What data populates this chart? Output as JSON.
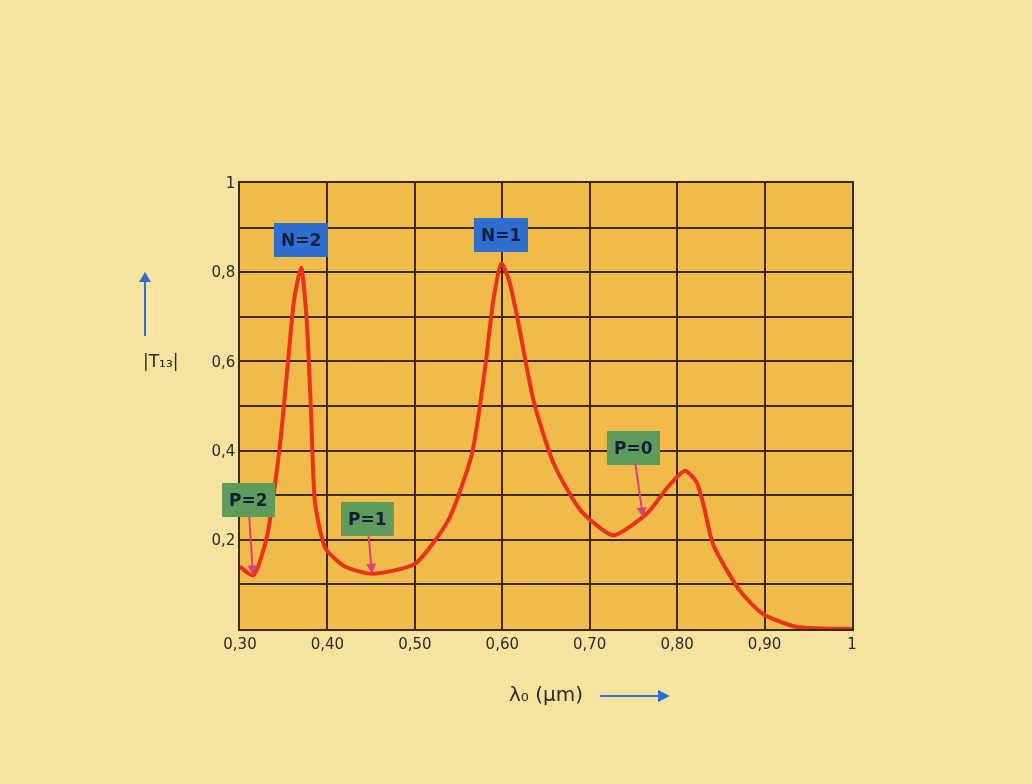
{
  "chart_data": {
    "type": "line",
    "xlabel": "λ₀ (µm)",
    "ylabel": "|T₁₃|",
    "x": [
      0.3,
      0.315,
      0.33,
      0.345,
      0.355,
      0.362,
      0.37,
      0.376,
      0.381,
      0.386,
      0.398,
      0.42,
      0.451,
      0.5,
      0.538,
      0.565,
      0.58,
      0.59,
      0.599,
      0.608,
      0.618,
      0.636,
      0.659,
      0.69,
      0.727,
      0.766,
      0.79,
      0.809,
      0.822,
      0.83,
      0.841,
      0.872,
      0.898,
      0.936,
      1.0
    ],
    "series": [
      {
        "color": "#e8321e",
        "values": [
          0.14,
          0.12,
          0.2,
          0.4,
          0.6,
          0.74,
          0.81,
          0.7,
          0.5,
          0.28,
          0.18,
          0.14,
          0.124,
          0.146,
          0.243,
          0.39,
          0.58,
          0.74,
          0.82,
          0.78,
          0.69,
          0.51,
          0.37,
          0.265,
          0.21,
          0.26,
          0.32,
          0.355,
          0.33,
          0.28,
          0.19,
          0.085,
          0.034,
          0.005,
          0.0
        ]
      }
    ],
    "xlim": [
      0.3,
      1.0
    ],
    "ylim": [
      0,
      1
    ],
    "xticks": [
      {
        "value": 0.3,
        "label": "0,30"
      },
      {
        "value": 0.4,
        "label": "0,40"
      },
      {
        "value": 0.5,
        "label": "0,50"
      },
      {
        "value": 0.6,
        "label": "0,60"
      },
      {
        "value": 0.7,
        "label": "0,70"
      },
      {
        "value": 0.8,
        "label": "0,80"
      },
      {
        "value": 0.9,
        "label": "0,90"
      },
      1
    ],
    "yticks": [
      {
        "value": 0,
        "label": null
      },
      {
        "value": 0.1,
        "label": null
      },
      {
        "value": 0.2,
        "label": "0,2"
      },
      {
        "value": 0.3,
        "label": null
      },
      {
        "value": 0.4,
        "label": "0,4"
      },
      {
        "value": 0.5,
        "label": null
      },
      {
        "value": 0.6,
        "label": "0,6"
      },
      {
        "value": 0.7,
        "label": null
      },
      {
        "value": 0.8,
        "label": "0,8"
      },
      {
        "value": 0.9,
        "label": null
      },
      1
    ],
    "grid": true,
    "marker": "none",
    "line_style": "solid",
    "annotations": [
      {
        "text": "N=2",
        "x": 0.37,
        "y": 0.81
      },
      {
        "text": "N=1",
        "x": 0.599,
        "y": 0.82
      },
      {
        "text": "P=2",
        "x": 0.315,
        "y": 0.12
      },
      {
        "text": "P=1",
        "x": 0.451,
        "y": 0.124
      },
      {
        "text": "P=0",
        "x": 0.761,
        "y": 0.25
      }
    ]
  }
}
